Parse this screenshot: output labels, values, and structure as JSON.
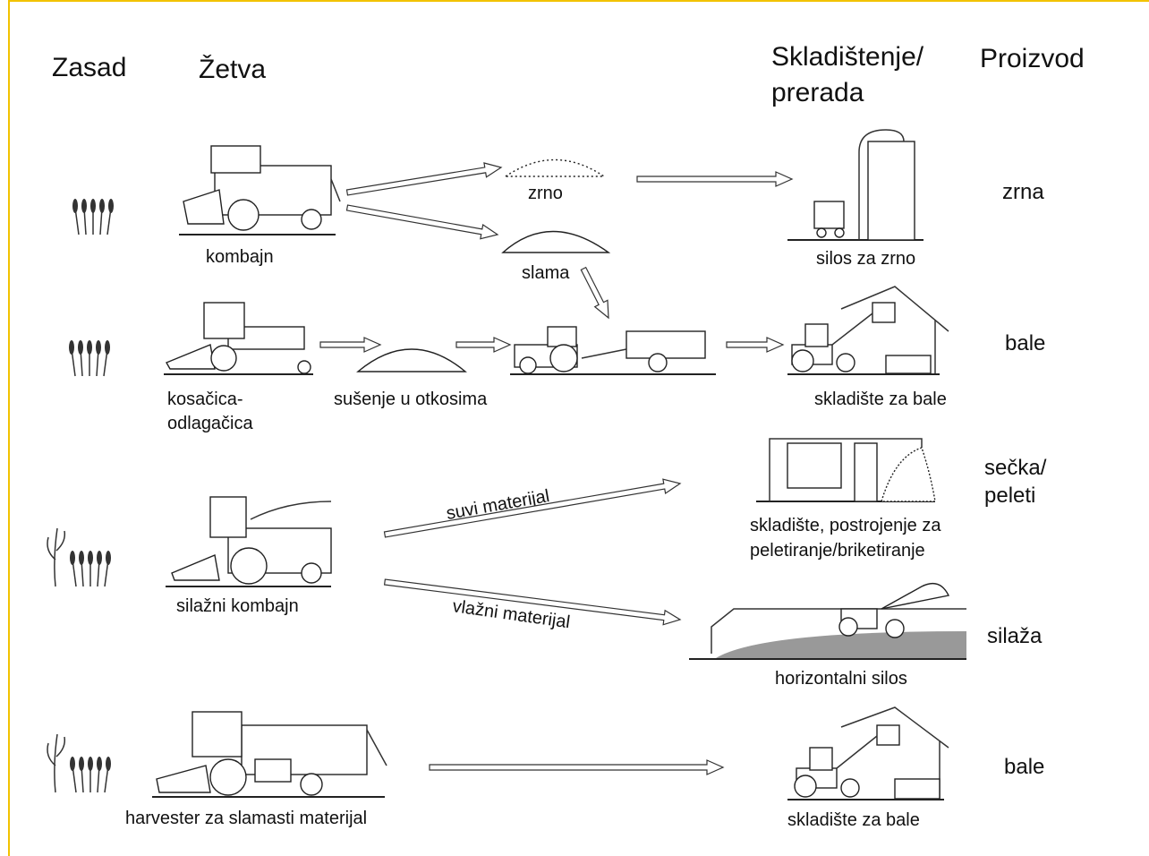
{
  "headers": {
    "planting": "Zasad",
    "harvest": "Žetva",
    "storage": [
      "Skladištenje/",
      "prerada"
    ],
    "product": "Proizvod"
  },
  "nodes": {
    "combine": "kombajn",
    "grain": "zrno",
    "straw": "slama",
    "grain_silo": "silos za zrno",
    "mower": [
      "kosačica-",
      "odlagačica"
    ],
    "drying": "sušenje u otkosima",
    "bale_storage_1": "skladište za bale",
    "forage_harvester": "silažni kombajn",
    "pellet_plant": [
      "skladište, postrojenje za",
      "peletiranje/briketiranje"
    ],
    "bunker_silo": "horizontalni silos",
    "straw_harvester": "harvester za slamasti materijal",
    "bale_storage_2": "skladište za bale"
  },
  "edges": {
    "dry": "suvi materijal",
    "wet": "vlažni materijal"
  },
  "products": [
    "zrna",
    "bale",
    [
      "sečka/",
      "peleti"
    ],
    "silaža",
    "bale"
  ]
}
